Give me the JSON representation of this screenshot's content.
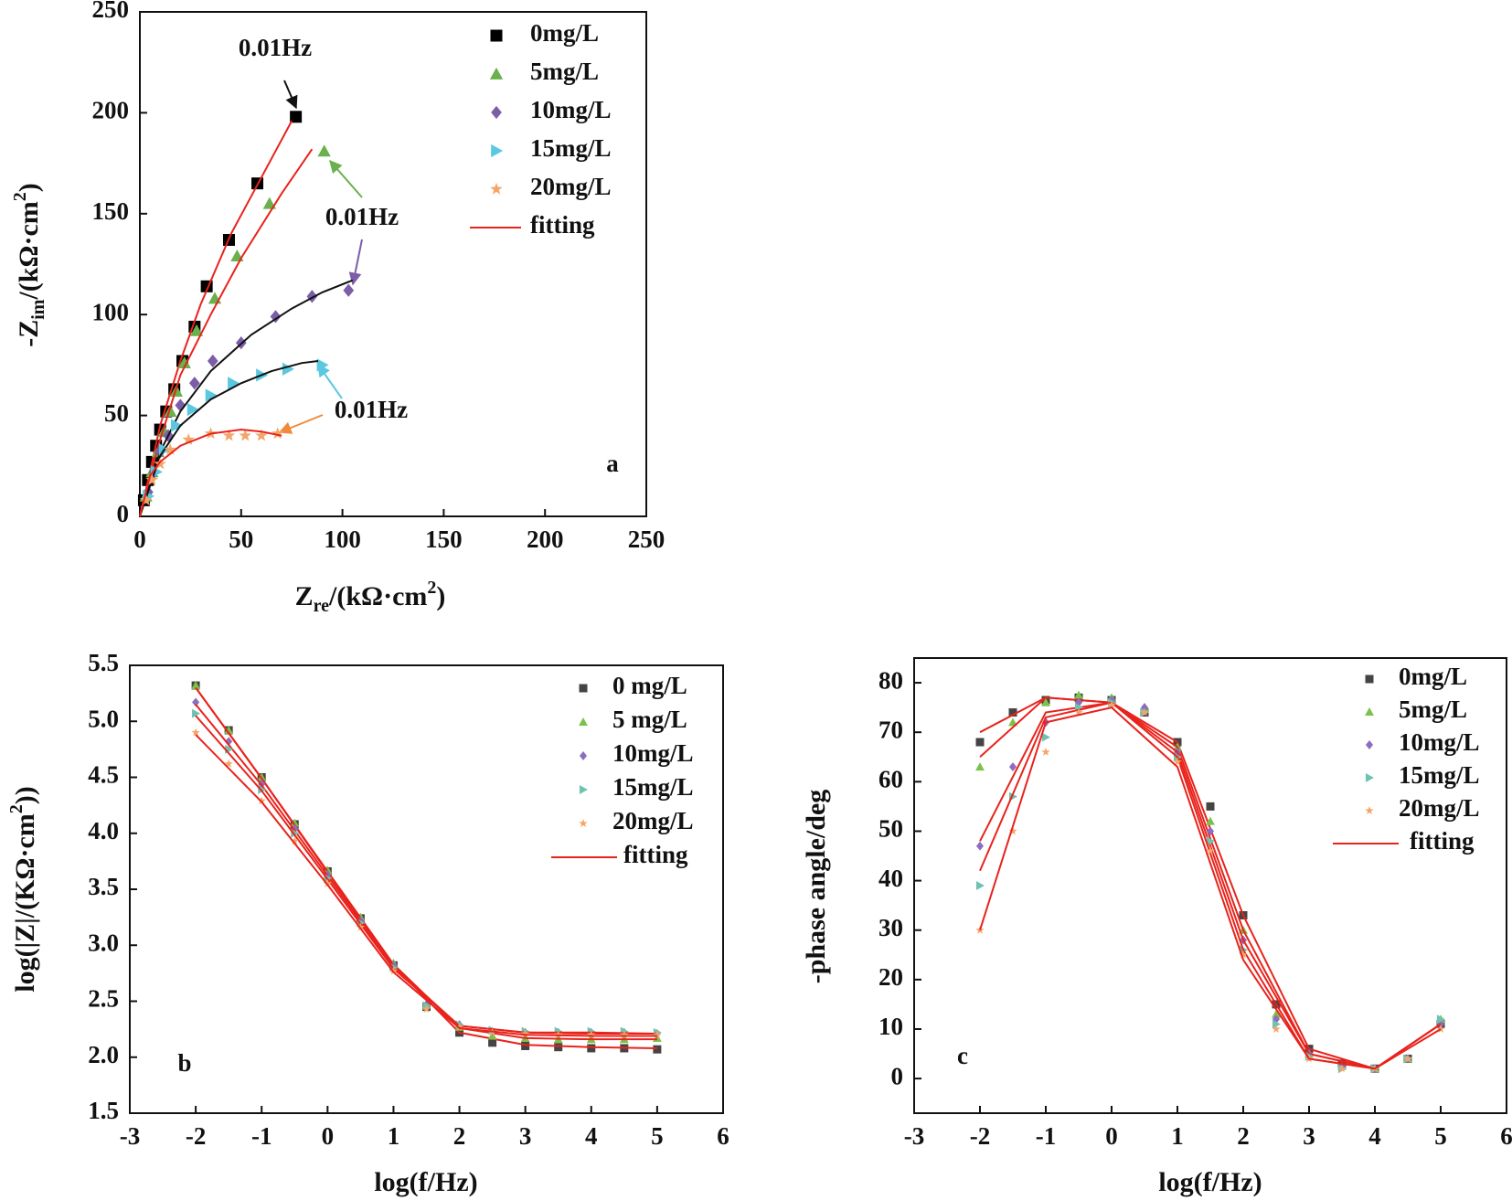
{
  "chart_data": [
    {
      "type": "scatter",
      "panel": "a",
      "x_label": [
        "Z",
        "re",
        "/(kΩ·cm",
        "2",
        ")"
      ],
      "y_label": [
        "-Z",
        "im",
        "/(kΩ·cm",
        "2",
        ")"
      ],
      "xlim": [
        0,
        250
      ],
      "ylim": [
        0,
        250
      ],
      "xticks": [
        0,
        50,
        100,
        150,
        200,
        250
      ],
      "yticks": [
        0,
        50,
        100,
        150,
        200,
        250
      ],
      "fit_name": "fitting",
      "fit_legend_color": "#e8231c",
      "annotations": [
        "0.01Hz",
        "0.01Hz",
        "0.01Hz"
      ],
      "series": [
        {
          "name": "0mg/L",
          "color": "#000000",
          "marker": "square",
          "x": [
            2,
            4,
            6,
            8,
            10,
            13,
            17,
            21,
            27,
            33,
            44,
            58,
            77
          ],
          "values": [
            8,
            18,
            27,
            35,
            43,
            52,
            63,
            77,
            94,
            114,
            137,
            165,
            198
          ],
          "fit_color": "#e8231c",
          "fit_x": [
            0,
            5,
            10,
            20,
            30,
            45,
            60,
            75
          ],
          "fit_values": [
            0,
            22,
            45,
            77,
            105,
            140,
            168,
            196
          ]
        },
        {
          "name": "5mg/L",
          "color": "#6ab04c",
          "marker": "triangle",
          "x": [
            3,
            6,
            9,
            12,
            15,
            18,
            22,
            28,
            37,
            48,
            64,
            91
          ],
          "values": [
            10,
            22,
            32,
            42,
            52,
            62,
            76,
            92,
            108,
            129,
            155,
            181
          ],
          "fit_color": "#e8231c",
          "fit_x": [
            0,
            5,
            10,
            20,
            35,
            50,
            70,
            85
          ],
          "fit_values": [
            0,
            20,
            38,
            70,
            100,
            128,
            160,
            182
          ]
        },
        {
          "name": "10mg/L",
          "color": "#7b5ea7",
          "marker": "diamond",
          "x": [
            4,
            7,
            10,
            14,
            20,
            27,
            36,
            50,
            67,
            85,
            103
          ],
          "values": [
            12,
            22,
            32,
            40,
            55,
            66,
            77,
            86,
            99,
            109,
            112
          ],
          "fit_color": "#111111",
          "fit_x": [
            0,
            10,
            20,
            35,
            55,
            75,
            90,
            105
          ],
          "fit_values": [
            0,
            32,
            52,
            72,
            90,
            103,
            111,
            117
          ]
        },
        {
          "name": "15mg/L",
          "color": "#5bc8e0",
          "marker": "tri-right",
          "x": [
            4,
            8,
            12,
            18,
            26,
            35,
            46,
            60,
            73,
            90
          ],
          "values": [
            10,
            22,
            33,
            45,
            53,
            60,
            66,
            70,
            73,
            75
          ],
          "fit_color": "#111111",
          "fit_x": [
            0,
            10,
            20,
            35,
            50,
            65,
            80,
            88
          ],
          "fit_values": [
            0,
            30,
            45,
            58,
            66,
            72,
            76,
            77
          ]
        },
        {
          "name": "20mg/L",
          "color": "#f4a56a",
          "marker": "star",
          "x": [
            3,
            6,
            10,
            15,
            24,
            35,
            44,
            52,
            60,
            68
          ],
          "values": [
            8,
            18,
            26,
            33,
            38,
            41,
            40,
            40,
            40,
            41
          ],
          "fit_color": "#e8231c",
          "fit_x": [
            0,
            5,
            10,
            20,
            35,
            50,
            60,
            70
          ],
          "fit_values": [
            0,
            20,
            27,
            35,
            41,
            43,
            42,
            40
          ]
        }
      ]
    },
    {
      "type": "scatter",
      "panel": "b",
      "x_label": [
        "log(f/Hz)"
      ],
      "y_label": [
        "log(|Z|/(KΩ·cm",
        "2",
        "))"
      ],
      "xlim": [
        -3,
        6
      ],
      "ylim": [
        1.5,
        5.5
      ],
      "xticks": [
        -3,
        -2,
        -1,
        0,
        1,
        2,
        3,
        4,
        5,
        6
      ],
      "yticks": [
        1.5,
        {
          "value": 2,
          "label": "2.0"
        },
        2.5,
        {
          "value": 3,
          "label": "3.0"
        },
        3.5,
        {
          "value": 4,
          "label": "4.0"
        },
        4.5,
        {
          "value": 5,
          "label": "5.0"
        },
        5.5
      ],
      "fit_name": "fitting",
      "fit_legend_color": "#e8231c",
      "x": [
        -2,
        -1.5,
        -1,
        -0.5,
        0,
        0.5,
        1,
        1.5,
        2,
        2.5,
        3,
        3.5,
        4,
        4.5,
        5
      ],
      "fit_x": [
        -2,
        -1,
        0,
        1,
        2,
        3,
        4,
        5
      ],
      "series": [
        {
          "name": "0 mg/L",
          "color": "#444444",
          "marker": "square",
          "values": [
            5.32,
            4.92,
            4.5,
            4.08,
            3.66,
            3.24,
            2.82,
            2.45,
            2.22,
            2.13,
            2.1,
            2.09,
            2.08,
            2.08,
            2.07
          ],
          "fit_color": "#e8231c",
          "fit_values": [
            5.3,
            4.49,
            3.65,
            2.82,
            2.22,
            2.11,
            2.09,
            2.08
          ]
        },
        {
          "name": "5 mg/L",
          "color": "#7cc24a",
          "marker": "triangle",
          "values": [
            5.32,
            4.92,
            4.5,
            4.09,
            3.67,
            3.25,
            2.84,
            2.47,
            2.27,
            2.19,
            2.17,
            2.16,
            2.16,
            2.16,
            2.17
          ],
          "fit_color": "#e8231c",
          "fit_values": [
            5.3,
            4.49,
            3.66,
            2.83,
            2.26,
            2.17,
            2.16,
            2.16
          ]
        },
        {
          "name": "10mg/L",
          "color": "#8e6cc0",
          "marker": "diamond",
          "values": [
            5.17,
            4.82,
            4.44,
            4.04,
            3.63,
            3.22,
            2.82,
            2.47,
            2.29,
            2.23,
            2.22,
            2.22,
            2.22,
            2.22,
            2.21
          ],
          "fit_color": "#e8231c",
          "fit_values": [
            5.15,
            4.43,
            3.62,
            2.81,
            2.28,
            2.22,
            2.21,
            2.21
          ]
        },
        {
          "name": "15mg/L",
          "color": "#6fc2b0",
          "marker": "tri-right",
          "values": [
            5.07,
            4.75,
            4.39,
            4.0,
            3.6,
            3.2,
            2.8,
            2.46,
            2.29,
            2.24,
            2.23,
            2.23,
            2.23,
            2.23,
            2.22
          ],
          "fit_color": "#e8231c",
          "fit_values": [
            5.05,
            4.38,
            3.59,
            2.79,
            2.28,
            2.22,
            2.22,
            2.21
          ]
        },
        {
          "name": "20mg/L",
          "color": "#f4a56a",
          "marker": "star",
          "values": [
            4.9,
            4.62,
            4.29,
            3.93,
            3.55,
            3.16,
            2.77,
            2.43,
            2.27,
            2.22,
            2.21,
            2.2,
            2.2,
            2.2,
            2.2
          ],
          "fit_color": "#e8231c",
          "fit_values": [
            4.88,
            4.28,
            3.54,
            2.76,
            2.26,
            2.2,
            2.19,
            2.19
          ]
        }
      ]
    },
    {
      "type": "scatter",
      "panel": "c",
      "x_label": [
        "log(f/Hz)"
      ],
      "y_label": [
        "-phase angle/deg"
      ],
      "xlim": [
        -3,
        6
      ],
      "ylim": [
        -7,
        85
      ],
      "xticks": [
        -3,
        -2,
        -1,
        0,
        1,
        2,
        3,
        4,
        5,
        6
      ],
      "yticks": [
        0,
        10,
        20,
        30,
        40,
        50,
        60,
        70,
        80
      ],
      "fit_name": "fitting",
      "fit_legend_color": "#e8231c",
      "x": [
        -2,
        -1.5,
        -1,
        -0.5,
        0,
        0.5,
        1,
        1.5,
        2,
        2.5,
        3,
        3.5,
        4,
        4.5,
        5
      ],
      "fit_x": [
        -2,
        -1,
        0,
        1,
        2,
        3,
        4,
        5
      ],
      "series": [
        {
          "name": "0mg/L",
          "color": "#444444",
          "marker": "square",
          "values": [
            68,
            74,
            76.5,
            77,
            76.5,
            74,
            68,
            55,
            33,
            15,
            6,
            3,
            2,
            4,
            11
          ],
          "fit_color": "#e8231c",
          "fit_values": [
            70,
            77,
            76,
            68,
            33,
            6,
            2,
            11
          ]
        },
        {
          "name": "5mg/L",
          "color": "#7cc24a",
          "marker": "triangle",
          "values": [
            63,
            72,
            76,
            77.5,
            77,
            75,
            67,
            52,
            30,
            13,
            5,
            2.5,
            2,
            4,
            12
          ],
          "fit_color": "#e8231c",
          "fit_values": [
            65,
            77,
            76,
            67,
            30,
            5,
            2,
            11
          ]
        },
        {
          "name": "10mg/L",
          "color": "#8e6cc0",
          "marker": "diamond",
          "values": [
            47,
            63,
            72,
            76,
            76.5,
            75,
            66,
            50,
            28,
            12,
            5,
            2.5,
            2,
            4,
            11
          ],
          "fit_color": "#e8231c",
          "fit_values": [
            48,
            74,
            76,
            66,
            28,
            5,
            2,
            11
          ]
        },
        {
          "name": "15mg/L",
          "color": "#6fc2b0",
          "marker": "tri-right",
          "values": [
            39,
            57,
            69,
            75,
            76,
            74,
            65,
            48,
            26,
            11,
            4.5,
            2,
            2,
            4,
            12
          ],
          "fit_color": "#e8231c",
          "fit_values": [
            42,
            73,
            76,
            65,
            26,
            4,
            2,
            11
          ]
        },
        {
          "name": "20mg/L",
          "color": "#f4a56a",
          "marker": "star",
          "values": [
            30,
            50,
            66,
            74,
            75.5,
            74,
            64,
            46,
            25,
            10,
            4,
            2,
            2,
            4,
            10
          ],
          "fit_color": "#e8231c",
          "fit_values": [
            30,
            72,
            75,
            63,
            24,
            4,
            2,
            10
          ]
        }
      ]
    }
  ]
}
